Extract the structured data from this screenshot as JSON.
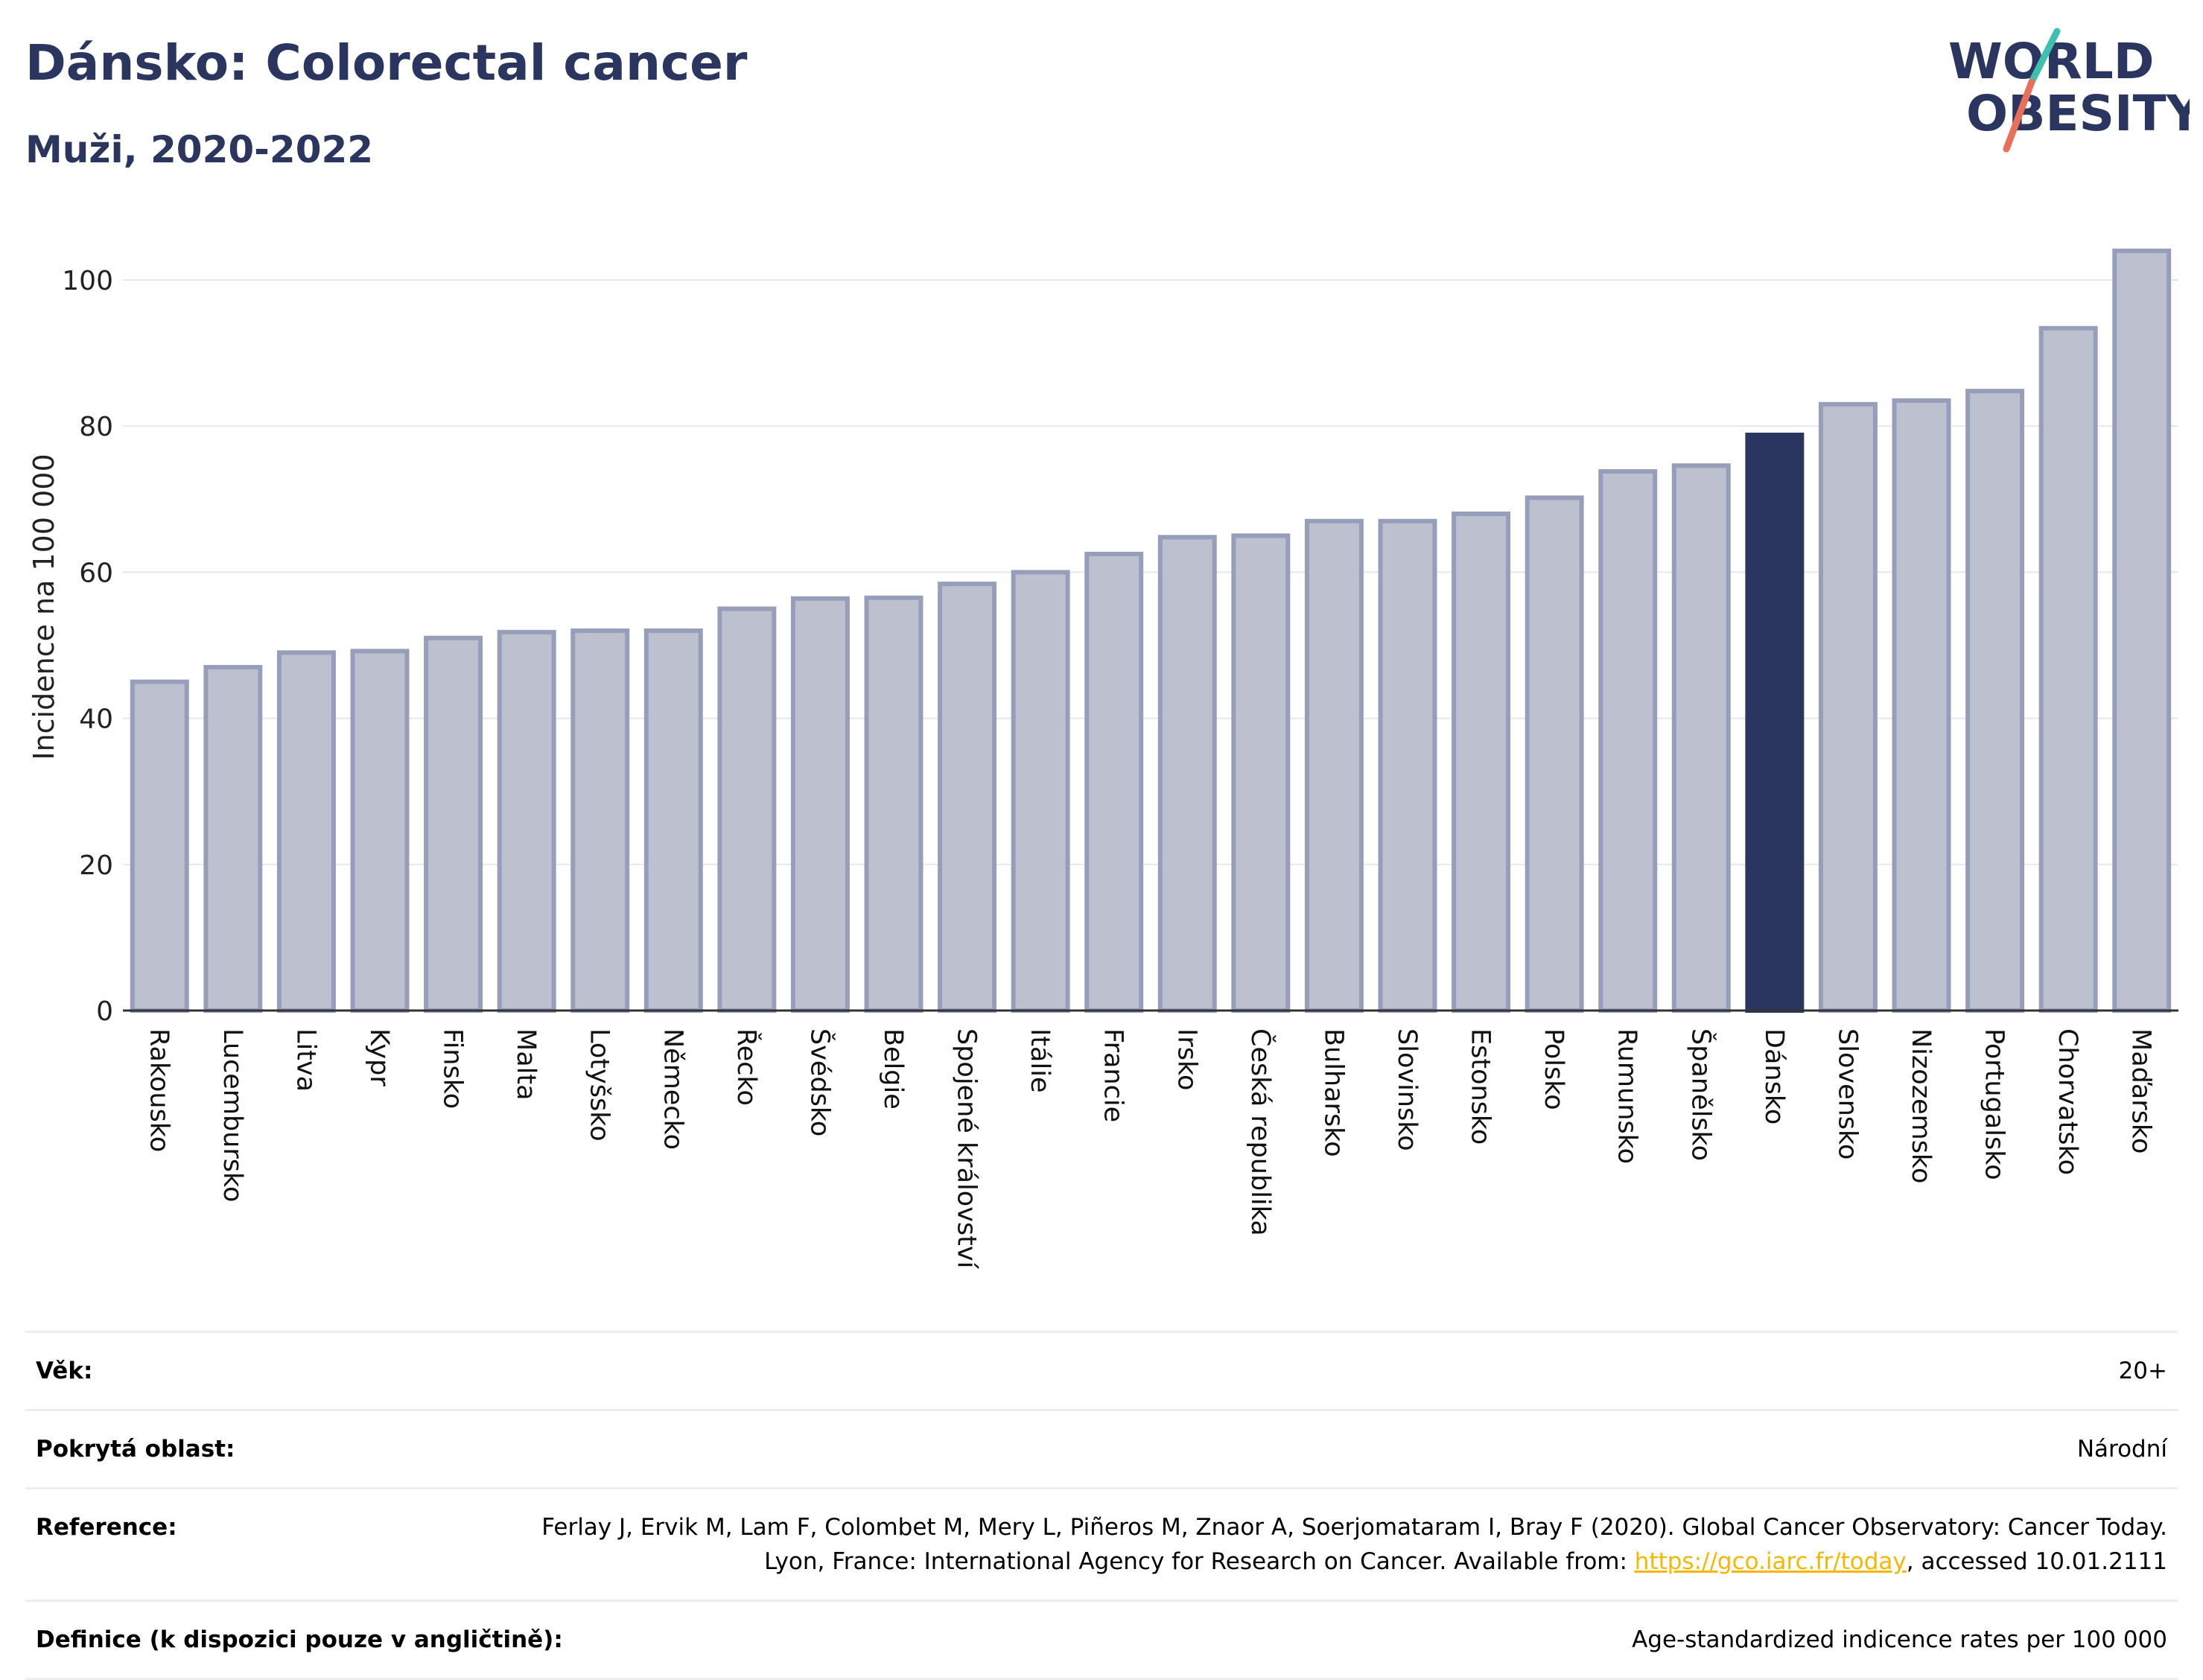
{
  "header": {
    "title": "Dánsko: Colorectal cancer",
    "subtitle": "Muži, 2020-2022"
  },
  "logo": {
    "line1": "WORLD",
    "line2": "OBESITY",
    "colors": {
      "text": "#2b3660",
      "slash_top": "#3ebfb0",
      "slash_bottom": "#e8705a"
    }
  },
  "chart_data": {
    "type": "bar",
    "ylabel": "Incidence na 100 000",
    "xlabel": "",
    "ylim": [
      0,
      105
    ],
    "yticks": [
      0,
      20,
      40,
      60,
      80,
      100
    ],
    "grid": true,
    "highlight": "Dánsko",
    "colors": {
      "bar": "#bcc0cf",
      "bar_edge": "#969eb9",
      "highlight": "#2b3660",
      "grid": "#e6e8ee",
      "axis": "#333333"
    },
    "categories": [
      "Rakousko",
      "Lucembursko",
      "Litva",
      "Kypr",
      "Finsko",
      "Malta",
      "Lotyšsko",
      "Německo",
      "Řecko",
      "Švédsko",
      "Belgie",
      "Spojené království",
      "Itálie",
      "Francie",
      "Irsko",
      "Česká republika",
      "Bulharsko",
      "Slovinsko",
      "Estonsko",
      "Polsko",
      "Rumunsko",
      "Španělsko",
      "Dánsko",
      "Slovensko",
      "Nizozemsko",
      "Portugalsko",
      "Chorvatsko",
      "Maďarsko"
    ],
    "values": [
      45,
      47,
      49,
      49.2,
      51,
      51.8,
      52,
      52,
      55,
      56.4,
      56.5,
      58.4,
      60,
      62.5,
      64.8,
      65,
      67,
      67,
      68,
      70.2,
      73.8,
      74.6,
      78.8,
      83,
      83.5,
      84.8,
      93.4,
      104
    ]
  },
  "info": {
    "rows": [
      {
        "label": "Věk:",
        "value": "20+"
      },
      {
        "label": "Pokrytá oblast:",
        "value": "Národní"
      },
      {
        "label": "Reference:",
        "value_pre": "Ferlay J, Ervik M, Lam F, Colombet M, Mery L, Piñeros M, Znaor A, Soerjomataram I, Bray F (2020). Global Cancer Observatory: Cancer Today. Lyon, France: International Agency for Research on Cancer. Available from: ",
        "link": "https://gco.iarc.fr/today",
        "value_post": ", accessed 10.01.2111"
      },
      {
        "label": "Definice (k dispozici pouze v angličtině):",
        "value": "Age-standardized indicence rates per 100 000"
      }
    ]
  }
}
